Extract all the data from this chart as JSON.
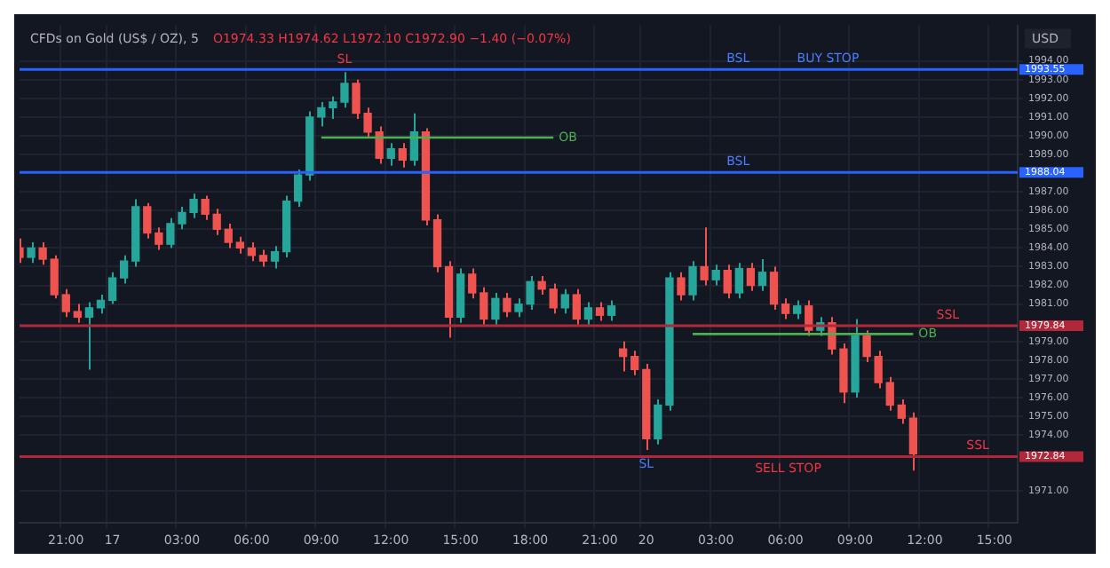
{
  "chart_data": {
    "type": "candlestick",
    "title": "CFDs on Gold (US$ / OZ), 5",
    "subtitle": "O1974.33 H1974.62 L1972.10 C1972.90 −1.40 (−0.07%)",
    "ylabel": "USD",
    "categories": [
      null,
      null,
      null,
      null,
      "21:00",
      null,
      null,
      null,
      "17",
      null,
      null,
      null,
      null,
      null,
      "03:00",
      null,
      null,
      null,
      null,
      null,
      "06:00",
      null,
      null,
      null,
      null,
      null,
      "09:00",
      null,
      null,
      null,
      null,
      null,
      "12:00",
      null,
      null,
      null,
      null,
      null,
      "15:00",
      null,
      null,
      null,
      null,
      null,
      "18:00",
      null,
      null,
      null,
      null,
      null,
      "21:00",
      null,
      null,
      null,
      "20",
      null,
      null,
      null,
      null,
      null,
      "03:00",
      null,
      null,
      null,
      null,
      null,
      "06:00",
      null,
      null,
      null,
      null,
      null,
      "09:00",
      null,
      null,
      null,
      null,
      null,
      "12:00",
      null,
      null,
      null,
      null,
      null,
      "15:00",
      null,
      null
    ],
    "ohlc": [
      [
        1984.0,
        1984.5,
        1983.2,
        1983.5
      ],
      [
        1983.5,
        1984.3,
        1983.2,
        1984.0
      ],
      [
        1984.0,
        1984.3,
        1983.1,
        1983.4
      ],
      [
        1983.4,
        1983.6,
        1981.3,
        1981.5
      ],
      [
        1981.5,
        1981.8,
        1980.3,
        1980.6
      ],
      [
        1980.6,
        1981.0,
        1980.0,
        1980.3
      ],
      [
        1980.3,
        1981.1,
        1977.5,
        1980.8
      ],
      [
        1980.8,
        1981.5,
        1980.5,
        1981.2
      ],
      [
        1981.2,
        1982.7,
        1981.0,
        1982.4
      ],
      [
        1982.4,
        1983.6,
        1982.1,
        1983.3
      ],
      [
        1983.3,
        1986.6,
        1983.0,
        1986.2
      ],
      [
        1986.2,
        1986.4,
        1984.5,
        1984.8
      ],
      [
        1984.8,
        1985.1,
        1983.9,
        1984.2
      ],
      [
        1984.2,
        1985.6,
        1984.0,
        1985.3
      ],
      [
        1985.3,
        1986.2,
        1985.0,
        1985.9
      ],
      [
        1985.9,
        1986.9,
        1985.6,
        1986.6
      ],
      [
        1986.6,
        1986.8,
        1985.5,
        1985.8
      ],
      [
        1985.8,
        1986.1,
        1984.7,
        1985.0
      ],
      [
        1985.0,
        1985.3,
        1984.0,
        1984.3
      ],
      [
        1984.3,
        1984.6,
        1983.7,
        1984.0
      ],
      [
        1984.0,
        1984.3,
        1983.3,
        1983.6
      ],
      [
        1983.6,
        1983.9,
        1983.0,
        1983.3
      ],
      [
        1983.3,
        1984.1,
        1982.9,
        1983.8
      ],
      [
        1983.8,
        1986.8,
        1983.5,
        1986.5
      ],
      [
        1986.5,
        1988.2,
        1986.2,
        1987.9
      ],
      [
        1987.9,
        1991.3,
        1987.6,
        1991.0
      ],
      [
        1991.0,
        1991.8,
        1990.5,
        1991.5
      ],
      [
        1991.5,
        1992.1,
        1990.9,
        1991.8
      ],
      [
        1991.8,
        1993.4,
        1991.5,
        1992.8
      ],
      [
        1992.8,
        1993.0,
        1990.9,
        1991.2
      ],
      [
        1991.2,
        1991.5,
        1989.9,
        1990.2
      ],
      [
        1990.2,
        1990.5,
        1988.5,
        1988.8
      ],
      [
        1988.8,
        1989.6,
        1988.4,
        1989.3
      ],
      [
        1989.3,
        1989.6,
        1988.3,
        1988.7
      ],
      [
        1988.7,
        1991.2,
        1988.4,
        1990.2
      ],
      [
        1990.2,
        1990.4,
        1985.2,
        1985.5
      ],
      [
        1985.5,
        1985.8,
        1982.7,
        1983.0
      ],
      [
        1983.0,
        1983.3,
        1979.2,
        1980.3
      ],
      [
        1980.3,
        1982.9,
        1980.0,
        1982.6
      ],
      [
        1982.6,
        1982.9,
        1981.3,
        1981.6
      ],
      [
        1981.6,
        1981.9,
        1979.9,
        1980.2
      ],
      [
        1980.2,
        1981.6,
        1979.9,
        1981.3
      ],
      [
        1981.3,
        1981.6,
        1980.3,
        1980.6
      ],
      [
        1980.6,
        1981.3,
        1980.3,
        1981.0
      ],
      [
        1981.0,
        1982.5,
        1980.7,
        1982.2
      ],
      [
        1982.2,
        1982.5,
        1981.5,
        1981.8
      ],
      [
        1981.8,
        1982.1,
        1980.5,
        1980.8
      ],
      [
        1980.8,
        1981.8,
        1980.5,
        1981.5
      ],
      [
        1981.5,
        1981.8,
        1979.9,
        1980.2
      ],
      [
        1980.2,
        1981.1,
        1979.9,
        1980.8
      ],
      [
        1980.8,
        1981.1,
        1980.1,
        1980.4
      ],
      [
        1980.4,
        1981.2,
        1980.1,
        1980.9
      ],
      [
        1978.6,
        1979.0,
        1977.4,
        1978.2
      ],
      [
        1978.2,
        1978.5,
        1977.2,
        1977.5
      ],
      [
        1977.5,
        1977.8,
        1973.2,
        1973.8
      ],
      [
        1973.8,
        1975.9,
        1973.5,
        1975.6
      ],
      [
        1975.6,
        1982.7,
        1975.3,
        1982.4
      ],
      [
        1982.4,
        1982.7,
        1981.2,
        1981.5
      ],
      [
        1981.5,
        1983.3,
        1981.2,
        1983.0
      ],
      [
        1983.0,
        1985.1,
        1982.0,
        1982.3
      ],
      [
        1982.3,
        1983.1,
        1982.0,
        1982.8
      ],
      [
        1982.8,
        1983.1,
        1981.3,
        1981.6
      ],
      [
        1981.6,
        1983.2,
        1981.3,
        1982.9
      ],
      [
        1982.9,
        1983.2,
        1981.7,
        1982.0
      ],
      [
        1982.0,
        1983.4,
        1981.7,
        1982.7
      ],
      [
        1982.7,
        1983.0,
        1980.7,
        1981.0
      ],
      [
        1981.0,
        1981.3,
        1980.2,
        1980.5
      ],
      [
        1980.5,
        1981.2,
        1980.2,
        1980.9
      ],
      [
        1980.9,
        1981.2,
        1979.3,
        1979.6
      ],
      [
        1979.6,
        1980.3,
        1979.3,
        1980.0
      ],
      [
        1980.0,
        1980.3,
        1978.3,
        1978.6
      ],
      [
        1978.6,
        1978.9,
        1975.7,
        1976.3
      ],
      [
        1976.3,
        1980.2,
        1976.0,
        1979.3
      ],
      [
        1979.3,
        1979.6,
        1977.9,
        1978.2
      ],
      [
        1978.2,
        1978.5,
        1976.5,
        1976.8
      ],
      [
        1976.8,
        1977.1,
        1975.3,
        1975.6
      ],
      [
        1975.6,
        1975.9,
        1974.6,
        1974.9
      ],
      [
        1974.9,
        1975.2,
        1972.1,
        1973.0
      ],
      null,
      null,
      null,
      null,
      null,
      null,
      null,
      null,
      null
    ],
    "series": [
      {
        "type": "line",
        "name": "OB",
        "color": "#4caf50",
        "values": [
          null,
          null,
          null,
          null,
          null,
          null,
          null,
          null,
          null,
          null,
          null,
          null,
          null,
          null,
          null,
          null,
          null,
          null,
          null,
          null,
          null,
          null,
          null,
          null,
          null,
          null,
          1989.9,
          1989.9,
          1989.9,
          1989.9,
          1989.9,
          1989.9,
          1989.9,
          1989.9,
          1989.9,
          1989.9,
          1989.9,
          1989.9,
          1989.9,
          1989.9,
          1989.9,
          1989.9,
          1989.9,
          1989.9,
          1989.9,
          1989.9,
          1989.9,
          null,
          null,
          null,
          null,
          null,
          null,
          null,
          null,
          null,
          null,
          null,
          null,
          null,
          null,
          null,
          null,
          null,
          null,
          null,
          null,
          null,
          null,
          null,
          null,
          null,
          null,
          null,
          null,
          null,
          null,
          null,
          null,
          null,
          null,
          null,
          null,
          null,
          null,
          null,
          null
        ]
      },
      {
        "type": "line",
        "name": "OB",
        "color": "#4caf50",
        "values": [
          null,
          null,
          null,
          null,
          null,
          null,
          null,
          null,
          null,
          null,
          null,
          null,
          null,
          null,
          null,
          null,
          null,
          null,
          null,
          null,
          null,
          null,
          null,
          null,
          null,
          null,
          null,
          null,
          null,
          null,
          null,
          null,
          null,
          null,
          null,
          null,
          null,
          null,
          null,
          null,
          null,
          null,
          null,
          null,
          null,
          null,
          null,
          null,
          null,
          null,
          null,
          null,
          null,
          null,
          null,
          null,
          null,
          null,
          1979.4,
          1979.4,
          1979.4,
          1979.4,
          1979.4,
          1979.4,
          1979.4,
          1979.4,
          1979.4,
          1979.4,
          1979.4,
          1979.4,
          1979.4,
          1979.4,
          1979.4,
          1979.4,
          1979.4,
          1979.4,
          1979.4,
          1979.4,
          null,
          null,
          null,
          null,
          null,
          null,
          null,
          null,
          null
        ]
      }
    ],
    "ref_lines": [
      {
        "axis": "y",
        "value": 1993.55,
        "label": "1993.55",
        "color": "#2962ff"
      },
      {
        "axis": "y",
        "value": 1988.04,
        "label": "1988.04",
        "color": "#2962ff"
      },
      {
        "axis": "y",
        "value": 1979.84,
        "label": "1979.84",
        "color": "#b2283b"
      },
      {
        "axis": "y",
        "value": 1972.84,
        "label": "1972.84",
        "color": "#b2283b"
      }
    ],
    "annotations": [
      {
        "text": "SL",
        "y": 1993.4
      },
      {
        "text": "BSL",
        "y": 1993.55
      },
      {
        "text": "BUY STOP",
        "y": 1993.55
      },
      {
        "text": "BSL",
        "y": 1988.04
      },
      {
        "text": "SSL",
        "y": 1979.84
      },
      {
        "text": "SSL",
        "y": 1972.84
      },
      {
        "text": "SELL STOP",
        "y": 1972.84
      },
      {
        "text": "SL",
        "y": 1973.2
      }
    ],
    "ylim": [
      1969.3,
      1995.9
    ],
    "yticks": [
      {
        "value": 1971,
        "label": "1971.00"
      },
      {
        "value": 1974,
        "label": "1974.00"
      },
      {
        "value": 1975,
        "label": "1975.00"
      },
      {
        "value": 1976,
        "label": "1976.00"
      },
      {
        "value": 1977,
        "label": "1977.00"
      },
      {
        "value": 1978,
        "label": "1978.00"
      },
      {
        "value": 1979,
        "label": "1979.00"
      },
      {
        "value": 1981,
        "label": "1981.00"
      },
      {
        "value": 1982,
        "label": "1982.00"
      },
      {
        "value": 1983,
        "label": "1983.00"
      },
      {
        "value": 1984,
        "label": "1984.00"
      },
      {
        "value": 1985,
        "label": "1985.00"
      },
      {
        "value": 1986,
        "label": "1986.00"
      },
      {
        "value": 1987,
        "label": "1987.00"
      },
      {
        "value": 1989,
        "label": "1989.00"
      },
      {
        "value": 1990,
        "label": "1990.00"
      },
      {
        "value": 1991,
        "label": "1991.00"
      },
      {
        "value": 1992,
        "label": "1992.00"
      },
      {
        "value": 1993,
        "label": "1993.00"
      },
      {
        "value": 1994,
        "label": "1994.00"
      }
    ],
    "grid": true,
    "legend": false
  }
}
